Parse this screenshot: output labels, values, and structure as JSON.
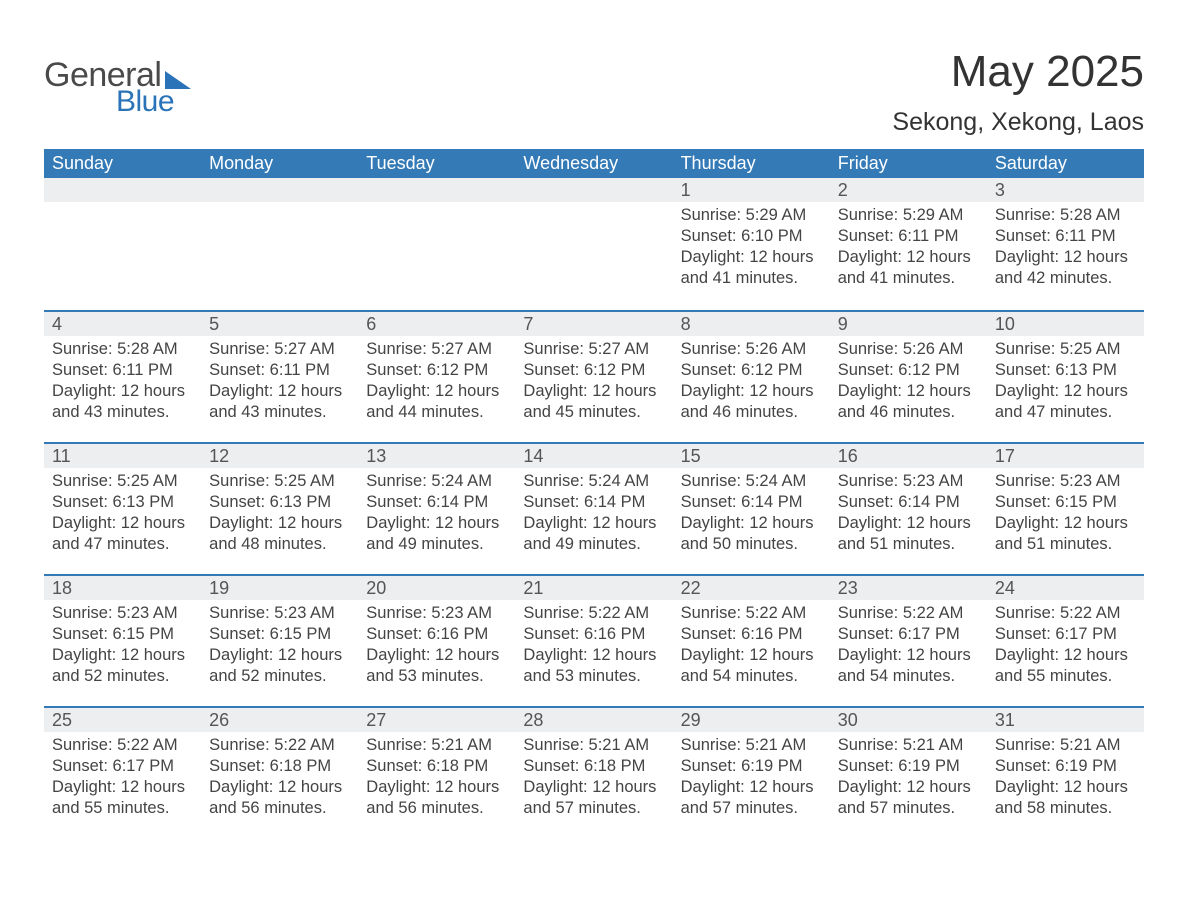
{
  "logo": {
    "word1": "General",
    "word2": "Blue"
  },
  "title": "May 2025",
  "location": "Sekong, Xekong, Laos",
  "colors": {
    "header_bg": "#337ab7",
    "header_text": "#ffffff",
    "daynum_bg": "#eceeef",
    "daynum_text": "#555555",
    "body_text": "#444444",
    "row_border": "#337ab7",
    "logo_blue": "#2a73b8",
    "logo_gray": "#4a4a4a",
    "page_bg": "#ffffff"
  },
  "weekdays": [
    "Sunday",
    "Monday",
    "Tuesday",
    "Wednesday",
    "Thursday",
    "Friday",
    "Saturday"
  ],
  "weeks": [
    [
      {
        "n": "",
        "sr": "",
        "ss": "",
        "dl": ""
      },
      {
        "n": "",
        "sr": "",
        "ss": "",
        "dl": ""
      },
      {
        "n": "",
        "sr": "",
        "ss": "",
        "dl": ""
      },
      {
        "n": "",
        "sr": "",
        "ss": "",
        "dl": ""
      },
      {
        "n": "1",
        "sr": "Sunrise: 5:29 AM",
        "ss": "Sunset: 6:10 PM",
        "dl": "Daylight: 12 hours and 41 minutes."
      },
      {
        "n": "2",
        "sr": "Sunrise: 5:29 AM",
        "ss": "Sunset: 6:11 PM",
        "dl": "Daylight: 12 hours and 41 minutes."
      },
      {
        "n": "3",
        "sr": "Sunrise: 5:28 AM",
        "ss": "Sunset: 6:11 PM",
        "dl": "Daylight: 12 hours and 42 minutes."
      }
    ],
    [
      {
        "n": "4",
        "sr": "Sunrise: 5:28 AM",
        "ss": "Sunset: 6:11 PM",
        "dl": "Daylight: 12 hours and 43 minutes."
      },
      {
        "n": "5",
        "sr": "Sunrise: 5:27 AM",
        "ss": "Sunset: 6:11 PM",
        "dl": "Daylight: 12 hours and 43 minutes."
      },
      {
        "n": "6",
        "sr": "Sunrise: 5:27 AM",
        "ss": "Sunset: 6:12 PM",
        "dl": "Daylight: 12 hours and 44 minutes."
      },
      {
        "n": "7",
        "sr": "Sunrise: 5:27 AM",
        "ss": "Sunset: 6:12 PM",
        "dl": "Daylight: 12 hours and 45 minutes."
      },
      {
        "n": "8",
        "sr": "Sunrise: 5:26 AM",
        "ss": "Sunset: 6:12 PM",
        "dl": "Daylight: 12 hours and 46 minutes."
      },
      {
        "n": "9",
        "sr": "Sunrise: 5:26 AM",
        "ss": "Sunset: 6:12 PM",
        "dl": "Daylight: 12 hours and 46 minutes."
      },
      {
        "n": "10",
        "sr": "Sunrise: 5:25 AM",
        "ss": "Sunset: 6:13 PM",
        "dl": "Daylight: 12 hours and 47 minutes."
      }
    ],
    [
      {
        "n": "11",
        "sr": "Sunrise: 5:25 AM",
        "ss": "Sunset: 6:13 PM",
        "dl": "Daylight: 12 hours and 47 minutes."
      },
      {
        "n": "12",
        "sr": "Sunrise: 5:25 AM",
        "ss": "Sunset: 6:13 PM",
        "dl": "Daylight: 12 hours and 48 minutes."
      },
      {
        "n": "13",
        "sr": "Sunrise: 5:24 AM",
        "ss": "Sunset: 6:14 PM",
        "dl": "Daylight: 12 hours and 49 minutes."
      },
      {
        "n": "14",
        "sr": "Sunrise: 5:24 AM",
        "ss": "Sunset: 6:14 PM",
        "dl": "Daylight: 12 hours and 49 minutes."
      },
      {
        "n": "15",
        "sr": "Sunrise: 5:24 AM",
        "ss": "Sunset: 6:14 PM",
        "dl": "Daylight: 12 hours and 50 minutes."
      },
      {
        "n": "16",
        "sr": "Sunrise: 5:23 AM",
        "ss": "Sunset: 6:14 PM",
        "dl": "Daylight: 12 hours and 51 minutes."
      },
      {
        "n": "17",
        "sr": "Sunrise: 5:23 AM",
        "ss": "Sunset: 6:15 PM",
        "dl": "Daylight: 12 hours and 51 minutes."
      }
    ],
    [
      {
        "n": "18",
        "sr": "Sunrise: 5:23 AM",
        "ss": "Sunset: 6:15 PM",
        "dl": "Daylight: 12 hours and 52 minutes."
      },
      {
        "n": "19",
        "sr": "Sunrise: 5:23 AM",
        "ss": "Sunset: 6:15 PM",
        "dl": "Daylight: 12 hours and 52 minutes."
      },
      {
        "n": "20",
        "sr": "Sunrise: 5:23 AM",
        "ss": "Sunset: 6:16 PM",
        "dl": "Daylight: 12 hours and 53 minutes."
      },
      {
        "n": "21",
        "sr": "Sunrise: 5:22 AM",
        "ss": "Sunset: 6:16 PM",
        "dl": "Daylight: 12 hours and 53 minutes."
      },
      {
        "n": "22",
        "sr": "Sunrise: 5:22 AM",
        "ss": "Sunset: 6:16 PM",
        "dl": "Daylight: 12 hours and 54 minutes."
      },
      {
        "n": "23",
        "sr": "Sunrise: 5:22 AM",
        "ss": "Sunset: 6:17 PM",
        "dl": "Daylight: 12 hours and 54 minutes."
      },
      {
        "n": "24",
        "sr": "Sunrise: 5:22 AM",
        "ss": "Sunset: 6:17 PM",
        "dl": "Daylight: 12 hours and 55 minutes."
      }
    ],
    [
      {
        "n": "25",
        "sr": "Sunrise: 5:22 AM",
        "ss": "Sunset: 6:17 PM",
        "dl": "Daylight: 12 hours and 55 minutes."
      },
      {
        "n": "26",
        "sr": "Sunrise: 5:22 AM",
        "ss": "Sunset: 6:18 PM",
        "dl": "Daylight: 12 hours and 56 minutes."
      },
      {
        "n": "27",
        "sr": "Sunrise: 5:21 AM",
        "ss": "Sunset: 6:18 PM",
        "dl": "Daylight: 12 hours and 56 minutes."
      },
      {
        "n": "28",
        "sr": "Sunrise: 5:21 AM",
        "ss": "Sunset: 6:18 PM",
        "dl": "Daylight: 12 hours and 57 minutes."
      },
      {
        "n": "29",
        "sr": "Sunrise: 5:21 AM",
        "ss": "Sunset: 6:19 PM",
        "dl": "Daylight: 12 hours and 57 minutes."
      },
      {
        "n": "30",
        "sr": "Sunrise: 5:21 AM",
        "ss": "Sunset: 6:19 PM",
        "dl": "Daylight: 12 hours and 57 minutes."
      },
      {
        "n": "31",
        "sr": "Sunrise: 5:21 AM",
        "ss": "Sunset: 6:19 PM",
        "dl": "Daylight: 12 hours and 58 minutes."
      }
    ]
  ]
}
